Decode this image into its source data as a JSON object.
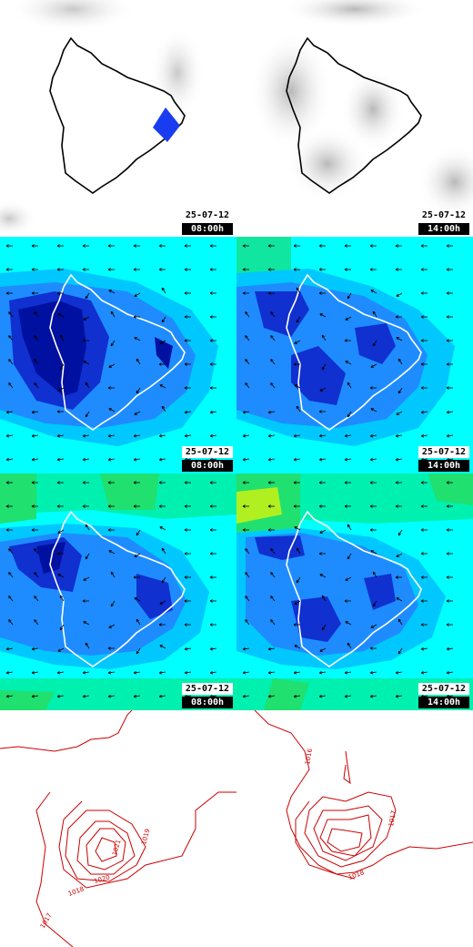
{
  "panels": [
    {
      "id": "p1",
      "date": "25-07-12",
      "time": "08:00h"
    },
    {
      "id": "p2",
      "date": "25-07-12",
      "time": "14:00h"
    },
    {
      "id": "p3",
      "date": "25-07-12",
      "time": "08:00h"
    },
    {
      "id": "p4",
      "date": "25-07-12",
      "time": "14:00h"
    },
    {
      "id": "p5",
      "date": "25-07-12",
      "time": "08:00h"
    },
    {
      "id": "p6",
      "date": "25-07-12",
      "time": "14:00h"
    }
  ],
  "pressure": {
    "left_labels": [
      "1021",
      "1019",
      "1020",
      "1018",
      "1017"
    ],
    "right_labels": [
      "1016",
      "1017",
      "1018"
    ]
  },
  "colors": {
    "coast_dark": "#000000",
    "coast_light": "#ffffff",
    "rain": "#1a3cf0",
    "isobar": "#cc0000",
    "field_low": "#00ffff",
    "field_mid": "#1e8cff",
    "field_high": "#1030d0",
    "field_max": "#0010a0",
    "field_green": "#20e070",
    "field_yellow": "#b0f020"
  }
}
